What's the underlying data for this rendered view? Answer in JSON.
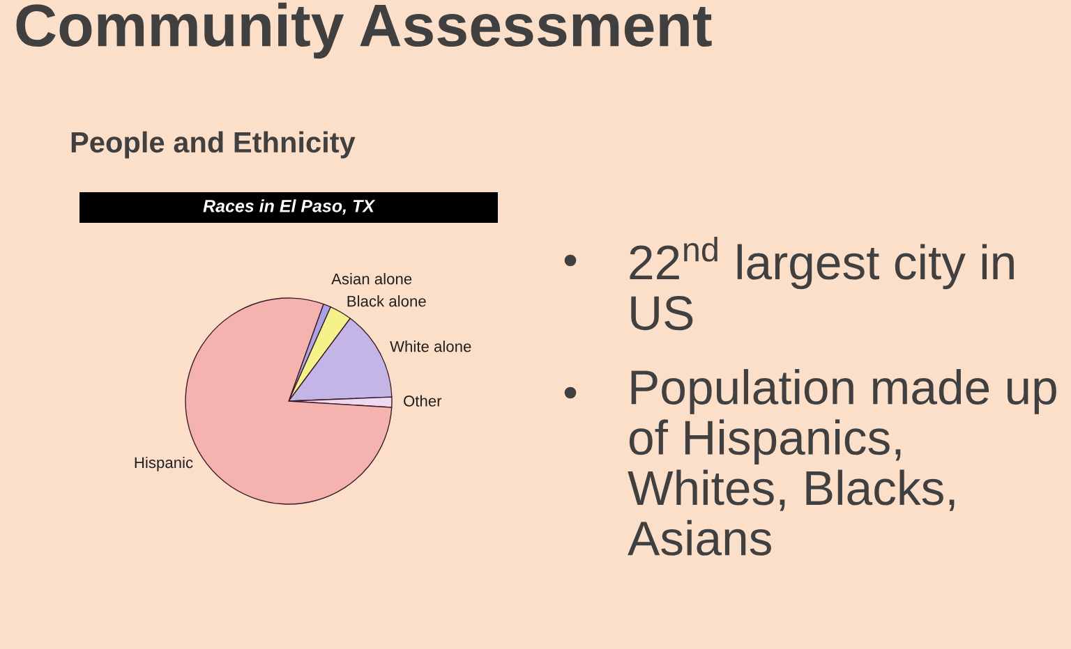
{
  "chart_data": {
    "type": "pie",
    "title": "Races in El Paso, TX",
    "categories": [
      "Asian alone",
      "Black alone",
      "White alone",
      "Other",
      "Hispanic"
    ],
    "values": [
      1.2,
      3.5,
      14.2,
      1.6,
      79.5
    ],
    "colors": [
      "#aaa2e6",
      "#f6f28a",
      "#c3b6e6",
      "#f0d8f0",
      "#f5b3b0"
    ],
    "annotations": [
      "Community Assessment",
      "People and Ethnicity",
      "22$^{nd}$ largest city in US",
      "Population made up of Hispanics, Whites, Blacks, Asians"
    ],
    "legend": false
  }
}
